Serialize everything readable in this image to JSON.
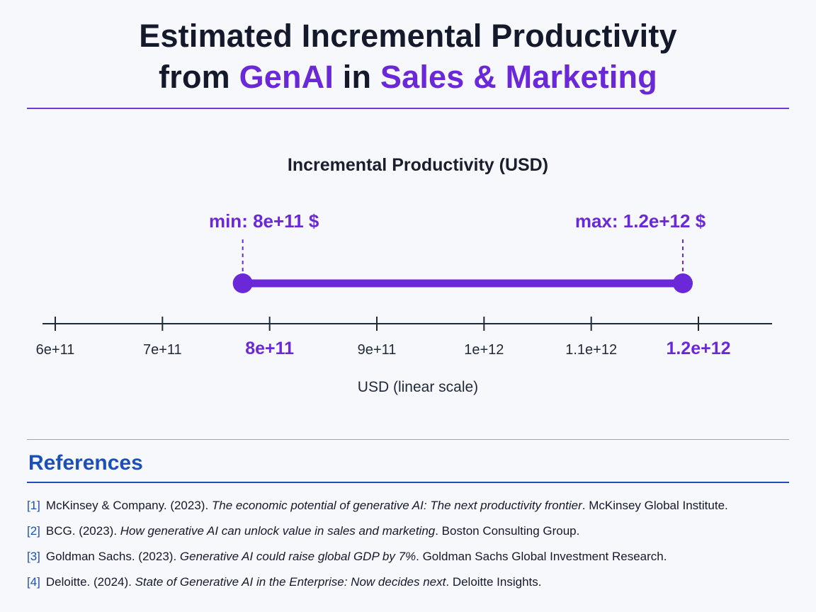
{
  "header": {
    "title_line1": "Estimated Incremental Productivity",
    "title_from": "from",
    "title_genai": "GenAI",
    "title_in": "in",
    "title_sales": "Sales & Marketing"
  },
  "chart_data": {
    "type": "range",
    "title": "Incremental Productivity (USD)",
    "xlabel": "USD (linear scale)",
    "scale": "linear",
    "xlim": [
      590000000000,
      1270000000000
    ],
    "ticks": [
      {
        "value": 600000000000,
        "label": "6e+11",
        "highlight": false
      },
      {
        "value": 700000000000,
        "label": "7e+11",
        "highlight": false
      },
      {
        "value": 800000000000,
        "label": "8e+11",
        "highlight": true
      },
      {
        "value": 900000000000,
        "label": "9e+11",
        "highlight": false
      },
      {
        "value": 1000000000000,
        "label": "1e+12",
        "highlight": false
      },
      {
        "value": 1100000000000,
        "label": "1.1e+12",
        "highlight": false
      },
      {
        "value": 1200000000000,
        "label": "1.2e+12",
        "highlight": true
      }
    ],
    "range": {
      "min": 800000000000,
      "max": 1200000000000,
      "min_label": "min:",
      "min_value_label": "8e+11 $",
      "max_label": "max:",
      "max_value_label": "1.2e+12 $"
    },
    "accent_color": "#6a28d9",
    "axis_color": "#1f2937"
  },
  "references": {
    "heading": "References",
    "items": [
      {
        "num": "[1]",
        "pre": "McKinsey & Company. (2023). ",
        "title": "The economic potential of generative AI: The next productivity frontier",
        "post": ". McKinsey Global Institute."
      },
      {
        "num": "[2]",
        "pre": "BCG. (2023). ",
        "title": "How generative AI can unlock value in sales and marketing",
        "post": ". Boston Consulting Group."
      },
      {
        "num": "[3]",
        "pre": "Goldman Sachs. (2023). ",
        "title": "Generative AI could raise global GDP by 7%",
        "post": ". Goldman Sachs Global Investment Research."
      },
      {
        "num": "[4]",
        "pre": "Deloitte. (2024). ",
        "title": "State of Generative AI in the Enterprise: Now decides next",
        "post": ". Deloitte Insights."
      }
    ]
  }
}
